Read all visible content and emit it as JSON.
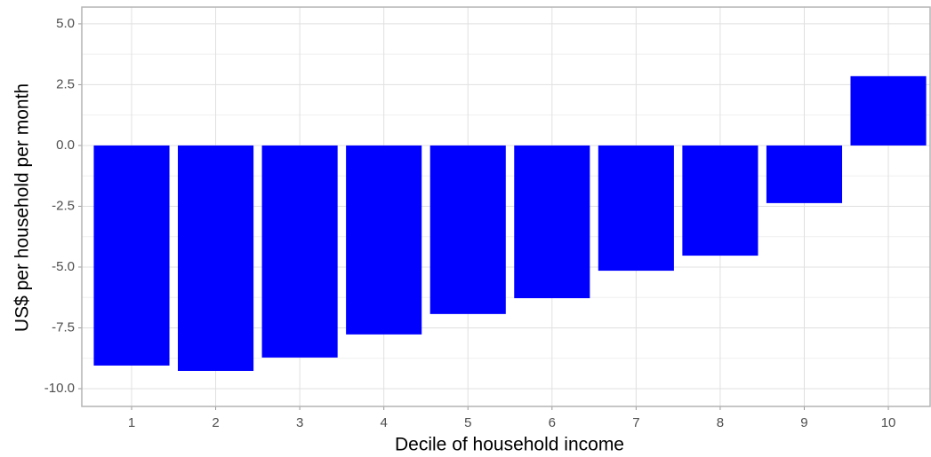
{
  "chart_data": {
    "type": "bar",
    "x_label": "Decile of household income",
    "y_label": "US$ per household per month",
    "categories": [
      "1",
      "2",
      "3",
      "4",
      "5",
      "6",
      "7",
      "8",
      "9",
      "10"
    ],
    "values": [
      -9.05,
      -9.27,
      -8.72,
      -7.77,
      -6.93,
      -6.28,
      -5.15,
      -4.53,
      -2.37,
      2.85
    ],
    "color": "#0000ff",
    "ylim": [
      -10.73,
      5.69
    ],
    "yticks": [
      {
        "value": -10,
        "label": "-10.0"
      },
      {
        "value": -7.5,
        "label": "-7.5"
      },
      {
        "value": -5,
        "label": "-5.0"
      },
      {
        "value": -2.5,
        "label": "-2.5"
      },
      {
        "value": 0,
        "label": "0.0"
      },
      {
        "value": 2.5,
        "label": "2.5"
      },
      {
        "value": 5,
        "label": "5.0"
      }
    ],
    "grid": true
  }
}
